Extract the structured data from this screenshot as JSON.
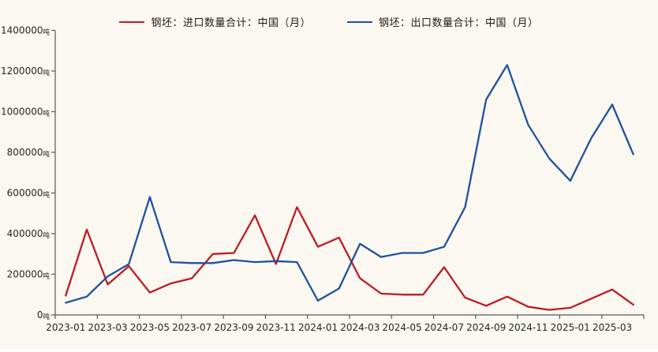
{
  "colors": {
    "background": "#FAF8F0",
    "axis": "#595959",
    "tick_text": "#262626",
    "import_red": "#BE1B23",
    "export_blue": "#20519E"
  },
  "legend": {
    "items": [
      {
        "label": "钢坯：进口数量合计：中国（月）",
        "series": "import",
        "color": "#BE1B23"
      },
      {
        "label": "钢坯：出口数量合计：中国（月）",
        "series": "export",
        "color": "#20519E"
      }
    ]
  },
  "chart_data": {
    "type": "line",
    "title": "",
    "xlabel": "",
    "ylabel": "",
    "y_unit": "吨",
    "ylim": [
      0,
      1400000
    ],
    "y_ticks": [
      0,
      200000,
      400000,
      600000,
      800000,
      1000000,
      1200000,
      1400000
    ],
    "grid": false,
    "legend_position": "top-center",
    "x": [
      "2023-01",
      "2023-02",
      "2023-03",
      "2023-04",
      "2023-05",
      "2023-06",
      "2023-07",
      "2023-08",
      "2023-09",
      "2023-10",
      "2023-11",
      "2023-12",
      "2024-01",
      "2024-02",
      "2024-03",
      "2024-04",
      "2024-05",
      "2024-06",
      "2024-07",
      "2024-08",
      "2024-09",
      "2024-10",
      "2024-11",
      "2024-12",
      "2025-01",
      "2025-02",
      "2025-03",
      "2025-04"
    ],
    "x_tick_labels": [
      "2023-01",
      "2023-03",
      "2023-05",
      "2023-07",
      "2023-09",
      "2023-11",
      "2024-01",
      "2024-03",
      "2024-05",
      "2024-07",
      "2024-09",
      "2024-11",
      "2025-01",
      "2025-03"
    ],
    "series": [
      {
        "name": "钢坯：进口数量合计：中国（月）",
        "color": "#BE1B23",
        "values": [
          95000,
          420000,
          150000,
          240000,
          110000,
          155000,
          180000,
          300000,
          305000,
          490000,
          250000,
          530000,
          335000,
          380000,
          180000,
          105000,
          100000,
          100000,
          235000,
          85000,
          45000,
          90000,
          40000,
          25000,
          35000,
          80000,
          125000,
          50000
        ]
      },
      {
        "name": "钢坯：出口数量合计：中国（月）",
        "color": "#20519E",
        "values": [
          60000,
          90000,
          190000,
          250000,
          580000,
          260000,
          255000,
          255000,
          270000,
          260000,
          265000,
          260000,
          70000,
          130000,
          350000,
          285000,
          305000,
          305000,
          335000,
          530000,
          1060000,
          1230000,
          935000,
          770000,
          660000,
          870000,
          1035000,
          790000
        ]
      }
    ]
  }
}
